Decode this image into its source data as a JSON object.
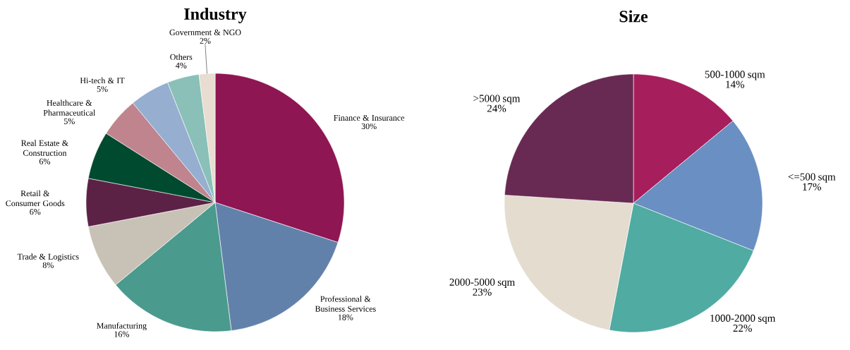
{
  "chart_data": [
    {
      "type": "pie",
      "title": "Industry",
      "categories": [
        "Finance & Insurance",
        "Professional & Business Services",
        "Manufacturing",
        "Trade & Logistics",
        "Retail & Consumer Goods",
        "Real Estate & Construction",
        "Healthcare & Pharmaceutical",
        "Hi-tech & IT",
        "Others",
        "Government & NGO"
      ],
      "values": [
        30,
        18,
        16,
        8,
        6,
        6,
        5,
        5,
        4,
        2
      ],
      "value_labels": [
        "30%",
        "18%",
        "16%",
        "8%",
        "6%",
        "6%",
        "5%",
        "5%",
        "4%",
        "2%"
      ],
      "colors": [
        "#8e1652",
        "#6281aa",
        "#4a9a8e",
        "#c8c2b6",
        "#5c2246",
        "#004a30",
        "#bf848d",
        "#96aed0",
        "#8ac0b8",
        "#e8ddd0"
      ]
    },
    {
      "type": "pie",
      "title": "Size",
      "categories": [
        "500-1000 sqm",
        "<=500 sqm",
        "1000-2000 sqm",
        "2000-5000 sqm",
        ">5000 sqm"
      ],
      "values": [
        14,
        17,
        22,
        23,
        24
      ],
      "value_labels": [
        "14%",
        "17%",
        "22%",
        "23%",
        "24%"
      ],
      "colors": [
        "#a61f5c",
        "#6a8fc3",
        "#50aba2",
        "#e4dccf",
        "#682a52"
      ]
    }
  ]
}
